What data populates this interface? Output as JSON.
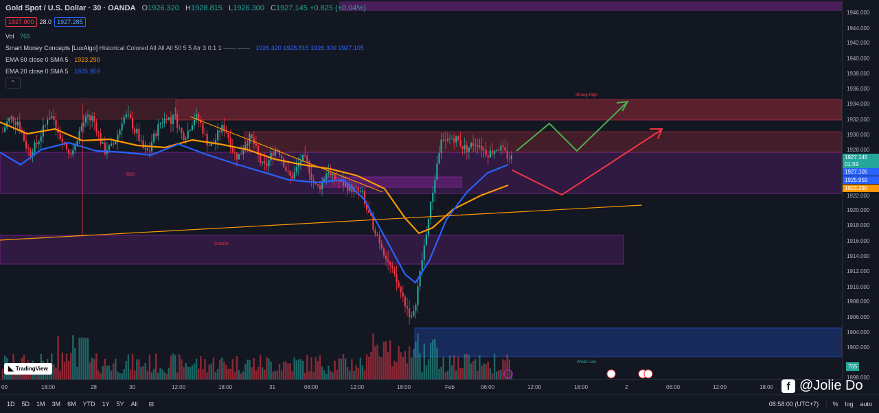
{
  "header": {
    "symbol": "Gold Spot / U.S. Dollar · 30 · OANDA",
    "open_key": "O",
    "open": "1926.320",
    "high_key": "H",
    "high": "1928.815",
    "low_key": "L",
    "low": "1926.300",
    "close_key": "C",
    "close": "1927.145",
    "change": "+0.825 (+0.04%)",
    "sell_price": "1927.000",
    "spread": "28.0",
    "buy_price": "1927.285"
  },
  "indicators": {
    "vol_label": "Vol",
    "vol_value": "765",
    "smc_name": "Smart Money Concepts [LuxAlgo]",
    "smc_params": "Historical Colored All All All 50 5 5 Atr 3 0.1 1",
    "smc_values": "1926.320  1928.815  1926.300  1927.105",
    "ema50_label": "EMA 50 close 0 SMA 5",
    "ema50_value": "1923.290",
    "ema20_label": "EMA 20 close 0 SMA 5",
    "ema20_value": "1925.959"
  },
  "price_axis": {
    "ticks": [
      "1946.000",
      "1944.000",
      "1942.000",
      "1940.000",
      "1938.000",
      "1936.000",
      "1934.000",
      "1932.000",
      "1930.000",
      "1928.000",
      "1922.000",
      "1920.000",
      "1918.000",
      "1916.000",
      "1914.000",
      "1912.000",
      "1910.000",
      "1908.000",
      "1906.000",
      "1904.000",
      "1902.000",
      "1898.000"
    ],
    "current_price": "1927.145",
    "countdown": "01:59",
    "smc_close": "1927.105",
    "ema20": "1925.959",
    "ema50": "1923.290",
    "volume": "765"
  },
  "time_axis": [
    "00",
    "18:00",
    "28",
    "30",
    "12:00",
    "18:00",
    "31",
    "06:00",
    "12:00",
    "18:00",
    "Feb",
    "06:00",
    "12:00",
    "18:00",
    "2",
    "06:00",
    "12:00",
    "18:00"
  ],
  "annotations": {
    "choch_main": "CHoCH",
    "strong_high": "Strong High",
    "weak_low": "Weak Low",
    "bos": "BOS"
  },
  "bottom_bar": {
    "timeframes": [
      "1D",
      "5D",
      "1M",
      "3M",
      "6M",
      "YTD",
      "1Y",
      "5Y",
      "All"
    ],
    "clock": "08:58:00 (UTC+7)",
    "percent": "%",
    "log": "log",
    "auto": "auto"
  },
  "branding": {
    "tradingview": "TradingView",
    "watermark": "@Jolie Do"
  },
  "colors": {
    "bullish": "#26a69a",
    "bearish": "#f23645",
    "ema20": "#2962ff",
    "ema50": "#ff9800"
  }
}
